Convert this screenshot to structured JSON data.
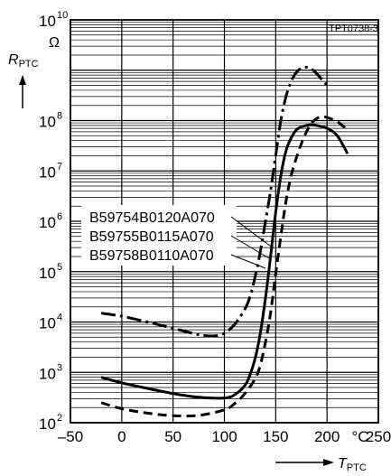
{
  "chart_data": {
    "type": "line",
    "doc_id": "TPT0738-3",
    "y_unit": "Ω",
    "y_label": {
      "main": "R",
      "sub": "PTC"
    },
    "x_label": {
      "main": "T",
      "sub": "PTC"
    },
    "x_unit": "°C",
    "x_scale": "linear",
    "y_scale": "log",
    "xlim": [
      -50,
      250
    ],
    "ylim": [
      100,
      10000000000
    ],
    "x_ticks": [
      {
        "value": -50,
        "label": "–50"
      },
      {
        "value": 0,
        "label": "0"
      },
      {
        "value": 50,
        "label": "50"
      },
      {
        "value": 100,
        "label": "100"
      },
      {
        "value": 150,
        "label": "150"
      },
      {
        "value": 200,
        "label": "200"
      },
      {
        "value": 250,
        "label": "250"
      }
    ],
    "y_ticks": [
      {
        "value": 100,
        "base": "10",
        "exp": "2"
      },
      {
        "value": 1000,
        "base": "10",
        "exp": "3"
      },
      {
        "value": 10000,
        "base": "10",
        "exp": "4"
      },
      {
        "value": 100000,
        "base": "10",
        "exp": "5"
      },
      {
        "value": 1000000,
        "base": "10",
        "exp": "6"
      },
      {
        "value": 10000000,
        "base": "10",
        "exp": "7"
      },
      {
        "value": 100000000,
        "base": "10",
        "exp": "8"
      },
      {
        "value": 10000000000,
        "base": "10",
        "exp": "10"
      }
    ],
    "grid": true,
    "series": [
      {
        "name": "B59754B0120A070",
        "style": "dash-dot",
        "x": [
          -20,
          0,
          25,
          50,
          75,
          90,
          100,
          110,
          120,
          125,
          130,
          135,
          140,
          145,
          150,
          155,
          160,
          165,
          170,
          175,
          180,
          185,
          190,
          200
        ],
        "y": [
          15000,
          13000,
          10000,
          7500,
          5600,
          5300,
          6000,
          9000,
          18000,
          32000,
          80000,
          250000,
          1000000,
          4000000,
          20000000,
          100000000,
          300000000,
          600000000,
          900000000,
          1100000000,
          1150000000,
          1050000000,
          850000000,
          500000000
        ]
      },
      {
        "name": "B59755B0115A070",
        "style": "solid",
        "x": [
          -20,
          0,
          25,
          50,
          75,
          100,
          110,
          120,
          125,
          130,
          135,
          140,
          145,
          150,
          155,
          160,
          165,
          170,
          175,
          180,
          185,
          190,
          200,
          210,
          220
        ],
        "y": [
          800,
          620,
          480,
          380,
          320,
          310,
          360,
          550,
          900,
          1900,
          6000,
          30000,
          200000,
          1500000,
          8000000,
          25000000,
          45000000,
          65000000,
          75000000,
          80000000,
          82000000,
          80000000,
          70000000,
          50000000,
          22000000
        ]
      },
      {
        "name": "B59758B0110A070",
        "style": "dashed",
        "x": [
          -20,
          0,
          25,
          50,
          75,
          100,
          110,
          120,
          130,
          135,
          140,
          145,
          150,
          155,
          160,
          165,
          170,
          175,
          180,
          185,
          190,
          195,
          200,
          210,
          220
        ],
        "y": [
          250,
          190,
          155,
          138,
          140,
          180,
          240,
          380,
          750,
          1400,
          4000,
          15000,
          90000,
          500000,
          2500000,
          8000000,
          18000000,
          35000000,
          60000000,
          90000000,
          110000000,
          120000000,
          115000000,
          95000000,
          65000000
        ]
      }
    ]
  }
}
